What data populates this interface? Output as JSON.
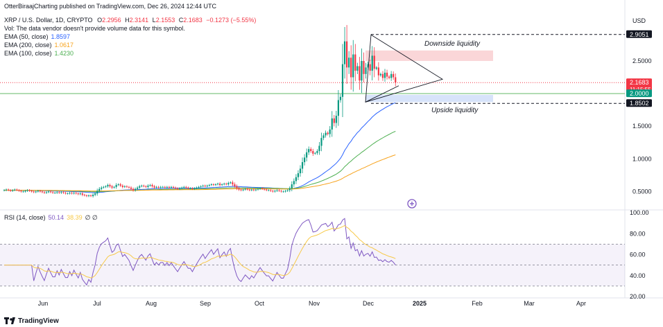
{
  "header": {
    "published": "OtterBiraajCharting published on TradingView.com, Dec 26, 2024 12:44 UTC",
    "symbol": "XRP / U.S. Dollar, 1D, CRYPTO",
    "o_label": "O",
    "o_value": "2.2956",
    "h_label": "H",
    "h_value": "2.3141",
    "l_label": "L",
    "l_value": "2.1553",
    "c_label": "C",
    "c_value": "2.1683",
    "change": "−0.1273 (−5.55%)",
    "vol_note": "Vol: The data vendor doesn't provide volume data for this symbol.",
    "currency": "USD"
  },
  "indicators": [
    {
      "label": "EMA (50, close)",
      "value": "1.8597",
      "color": "#2962ff"
    },
    {
      "label": "EMA (200, close)",
      "value": "1.0617",
      "color": "#f7a21b"
    },
    {
      "label": "EMA (100, close)",
      "value": "1.4230",
      "color": "#4caf50"
    }
  ],
  "rsi_legend": {
    "label": "RSI (14, close)",
    "value": "50.14",
    "ma_value": "38.39",
    "extra": "∅ ∅"
  },
  "annotations": {
    "downside": "Downside liquidity",
    "upside": "Upside liquidity"
  },
  "colors": {
    "up": "#089981",
    "down": "#f23645",
    "rsi": "#7e57c2",
    "rsi_ma": "#f7c948",
    "ema50": "#2962ff",
    "ema200": "#f7a21b",
    "ema100": "#4caf50"
  },
  "footer": {
    "brand": "TradingView"
  },
  "chart_data": {
    "type": "candlestick",
    "price_axis": {
      "ticks": [
        "0.5000",
        "1.0000",
        "1.5000",
        "2.5000"
      ],
      "range": [
        0.25,
        3.2
      ]
    },
    "price_tags": [
      {
        "value": 2.9051,
        "label": "2.9051",
        "bg": "#131722"
      },
      {
        "value": 2.1683,
        "label": "2.1683",
        "sub": "11:15:55",
        "bg": "#f23645"
      },
      {
        "value": 2.0,
        "label": "2.0000",
        "bg": "#089981"
      },
      {
        "value": 1.8502,
        "label": "1.8502",
        "bg": "#131722"
      }
    ],
    "x_labels": [
      "Jun",
      "Jul",
      "Aug",
      "Sep",
      "Oct",
      "Nov",
      "Dec",
      "2025",
      "Feb",
      "Mar",
      "Apr"
    ],
    "closes": [
      0.52,
      0.53,
      0.52,
      0.51,
      0.52,
      0.53,
      0.52,
      0.51,
      0.5,
      0.5,
      0.51,
      0.52,
      0.51,
      0.5,
      0.49,
      0.5,
      0.51,
      0.5,
      0.49,
      0.48,
      0.49,
      0.5,
      0.49,
      0.48,
      0.48,
      0.49,
      0.48,
      0.49,
      0.48,
      0.47,
      0.47,
      0.48,
      0.47,
      0.48,
      0.47,
      0.46,
      0.47,
      0.45,
      0.44,
      0.43,
      0.44,
      0.43,
      0.45,
      0.47,
      0.51,
      0.54,
      0.56,
      0.57,
      0.58,
      0.6,
      0.58,
      0.56,
      0.57,
      0.6,
      0.61,
      0.59,
      0.57,
      0.58,
      0.57,
      0.56,
      0.54,
      0.52,
      0.54,
      0.56,
      0.58,
      0.59,
      0.58,
      0.57,
      0.59,
      0.6,
      0.58,
      0.56,
      0.57,
      0.56,
      0.57,
      0.57,
      0.56,
      0.57,
      0.56,
      0.57,
      0.56,
      0.55,
      0.54,
      0.55,
      0.56,
      0.57,
      0.56,
      0.55,
      0.55,
      0.54,
      0.55,
      0.56,
      0.57,
      0.58,
      0.59,
      0.58,
      0.59,
      0.6,
      0.61,
      0.6,
      0.61,
      0.62,
      0.6,
      0.61,
      0.62,
      0.61,
      0.63,
      0.64,
      0.61,
      0.58,
      0.55,
      0.53,
      0.52,
      0.53,
      0.54,
      0.53,
      0.52,
      0.53,
      0.52,
      0.53,
      0.54,
      0.55,
      0.54,
      0.53,
      0.52,
      0.52,
      0.51,
      0.5,
      0.51,
      0.52,
      0.51,
      0.5,
      0.5,
      0.51,
      0.52,
      0.55,
      0.61,
      0.66,
      0.72,
      0.78,
      0.85,
      0.95,
      1.02,
      1.1,
      1.15,
      1.12,
      1.08,
      1.09,
      1.12,
      1.2,
      1.32,
      1.36,
      1.4,
      1.38,
      1.45,
      1.62,
      1.55,
      1.66,
      1.9,
      1.95,
      2.45,
      2.8,
      2.4,
      2.55,
      2.25,
      2.6,
      2.35,
      2.42,
      2.2,
      2.5,
      2.3,
      2.4,
      2.45,
      2.35,
      2.58,
      2.38,
      2.4,
      2.28,
      2.3,
      2.24,
      2.32,
      2.26,
      2.24,
      2.3,
      2.25,
      2.17
    ],
    "ema50_end": 1.8597,
    "ema100_end": 1.423,
    "ema200_end": 1.0617,
    "rsi": {
      "levels": [
        70,
        50,
        30
      ],
      "axis_ticks": [
        "100.00",
        "80.00",
        "60.00",
        "40.00",
        "20.00"
      ],
      "range": [
        20,
        100
      ],
      "last": 50.14,
      "ma_last": 38.39
    },
    "zones": [
      {
        "name": "downside-liquidity-zone",
        "from": 2.5,
        "to": 2.66,
        "color": "#f8c8cb"
      },
      {
        "name": "upside-liquidity-zone",
        "from": 1.87,
        "to": 1.98,
        "color": "#c9d9f8"
      }
    ],
    "horizontal_lines": [
      2.9051,
      2.1683,
      2.0,
      1.8502
    ],
    "triangle": {
      "apex_value": 2.22,
      "top_value": 2.9,
      "bottom_value": 1.87
    }
  }
}
